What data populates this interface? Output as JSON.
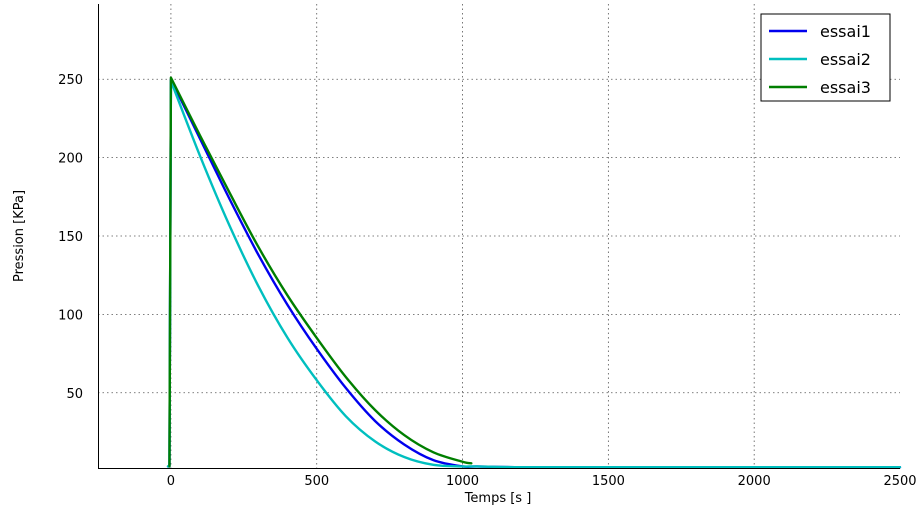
{
  "chart_data": {
    "type": "line",
    "title": "",
    "xlabel": "Temps [s ]",
    "ylabel": "Pression [KPa]",
    "xlim": [
      -250,
      2500
    ],
    "ylim": [
      2,
      298
    ],
    "xticks": [
      0,
      500,
      1000,
      1500,
      2000,
      2500
    ],
    "yticks": [
      50,
      100,
      150,
      200,
      250
    ],
    "xtick_labels": [
      "0",
      "500",
      "1000",
      "1500",
      "2000",
      "2500"
    ],
    "ytick_labels": [
      "50",
      "100",
      "150",
      "200",
      "250"
    ],
    "grid": true,
    "legend": "top-right",
    "series": [
      {
        "name": "essai1",
        "color": "#0000ee",
        "x": [
          -10,
          -5,
          0,
          100,
          200,
          300,
          400,
          500,
          600,
          700,
          800,
          900,
          1000,
          1050,
          1200,
          1500,
          2000,
          2500
        ],
        "y": [
          3,
          3,
          250,
          212,
          174,
          138,
          106,
          78,
          53,
          32,
          17,
          7,
          3,
          3,
          2.5,
          2.5,
          2.5,
          2.5
        ]
      },
      {
        "name": "essai2",
        "color": "#00bfbf",
        "x": [
          -10,
          -5,
          0,
          100,
          200,
          300,
          400,
          500,
          600,
          700,
          800,
          900,
          1000,
          1050,
          1200,
          1500,
          2000,
          2500
        ],
        "y": [
          3,
          3,
          249,
          201,
          157,
          118,
          85,
          58,
          35,
          19,
          9,
          4,
          3,
          3,
          2.5,
          2.5,
          2.5,
          2.5
        ]
      },
      {
        "name": "essai3",
        "color": "#007f00",
        "x": [
          -5,
          0,
          100,
          200,
          300,
          400,
          500,
          600,
          700,
          800,
          900,
          1000,
          1030
        ],
        "y": [
          3,
          251,
          214,
          178,
          143,
          112,
          85,
          60,
          39,
          23,
          12,
          6,
          5
        ]
      }
    ]
  }
}
